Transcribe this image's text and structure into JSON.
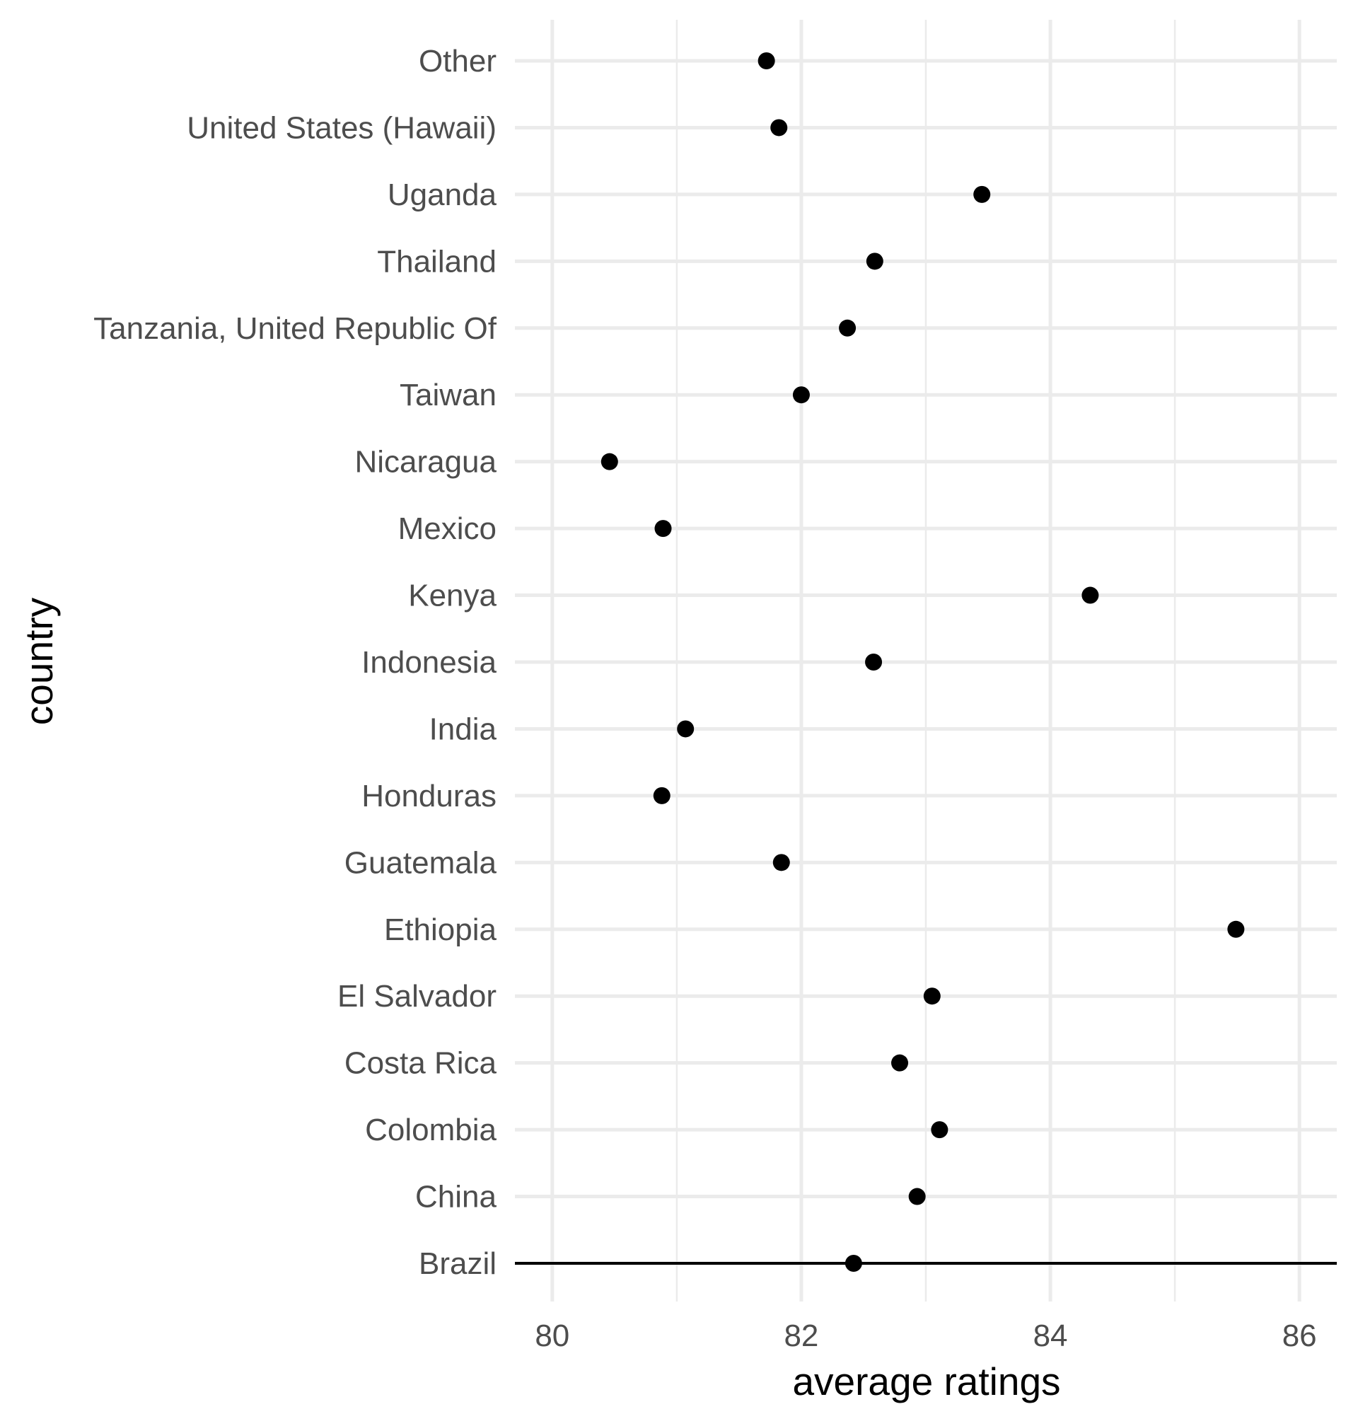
{
  "chart_data": {
    "type": "scatter",
    "xlabel": "average ratings",
    "ylabel": "country",
    "xlim": [
      79.7,
      86.3
    ],
    "x_ticks": [
      80,
      82,
      84,
      86
    ],
    "x_minor_ticks": [
      81,
      83,
      85
    ],
    "grid": true,
    "categories": [
      "Brazil",
      "China",
      "Colombia",
      "Costa Rica",
      "El Salvador",
      "Ethiopia",
      "Guatemala",
      "Honduras",
      "India",
      "Indonesia",
      "Kenya",
      "Mexico",
      "Nicaragua",
      "Taiwan",
      "Tanzania, United Republic Of",
      "Thailand",
      "Uganda",
      "United States (Hawaii)",
      "Other"
    ],
    "values": [
      82.42,
      82.93,
      83.11,
      82.79,
      83.05,
      85.49,
      81.84,
      80.88,
      81.07,
      82.58,
      84.32,
      80.89,
      80.46,
      82.0,
      82.37,
      82.59,
      83.45,
      81.82,
      81.72
    ],
    "baseline_category": "Brazil",
    "colors": {
      "point": "#000000",
      "grid": "#ebebeb",
      "tick_label": "#4d4d4d",
      "baseline": "#000000"
    }
  }
}
